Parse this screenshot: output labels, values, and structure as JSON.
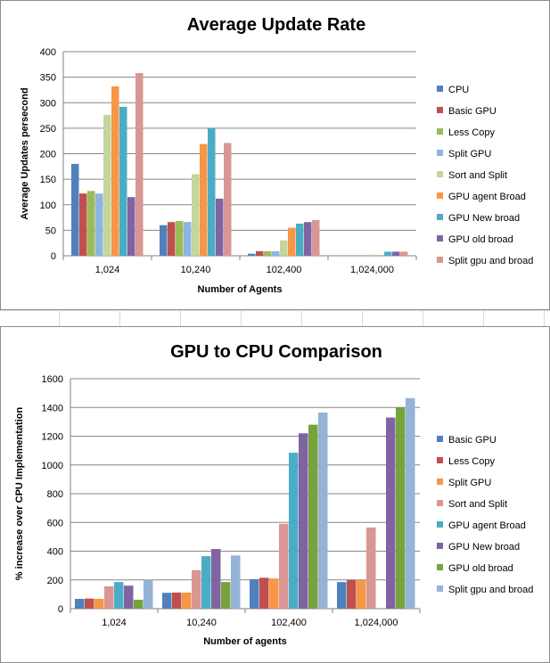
{
  "chart_data": [
    {
      "type": "bar",
      "title": "Average Update Rate",
      "xlabel": "Number of Agents",
      "ylabel": "Average Updates persecond",
      "ylim": [
        0,
        400
      ],
      "yticks": [
        "0",
        "50",
        "100",
        "150",
        "200",
        "250",
        "300",
        "350",
        "400"
      ],
      "categories": [
        "1,024",
        "10,240",
        "102,400",
        "1,024,000"
      ],
      "grid": true,
      "legend": "right",
      "series": [
        {
          "name": "CPU",
          "color": "#4F81BD",
          "values": [
            180,
            60,
            4,
            0
          ]
        },
        {
          "name": "Basic GPU",
          "color": "#C0504D",
          "values": [
            122,
            66,
            9,
            0
          ]
        },
        {
          "name": "Less Copy",
          "color": "#9BBB59",
          "values": [
            127,
            68,
            9,
            0
          ]
        },
        {
          "name": "Split GPU",
          "color": "#8EB4E3",
          "values": [
            122,
            66,
            9,
            0
          ]
        },
        {
          "name": "Sort and Split",
          "color": "#C3D69B",
          "values": [
            276,
            160,
            30,
            2
          ]
        },
        {
          "name": "GPU agent Broad",
          "color": "#F79646",
          "values": [
            332,
            219,
            55,
            0
          ]
        },
        {
          "name": "GPU New broad",
          "color": "#4BACC6",
          "values": [
            292,
            250,
            63,
            8
          ]
        },
        {
          "name": "GPU old broad",
          "color": "#8064A2",
          "values": [
            115,
            112,
            66,
            8
          ]
        },
        {
          "name": "Split gpu and broad",
          "color": "#D99694",
          "values": [
            358,
            221,
            70,
            8
          ]
        }
      ]
    },
    {
      "type": "bar",
      "title": "GPU to CPU Comparison",
      "xlabel": "Number of agents",
      "ylabel": "% increase over CPU Implementation",
      "ylim": [
        0,
        1600
      ],
      "yticks": [
        "0",
        "200",
        "400",
        "600",
        "800",
        "1000",
        "1200",
        "1400",
        "1600"
      ],
      "categories": [
        "1,024",
        "10,240",
        "102,400",
        "1,024,000"
      ],
      "grid": true,
      "legend": "right",
      "series": [
        {
          "name": "Basic GPU",
          "color": "#4F81BD",
          "values": [
            68,
            110,
            205,
            185
          ]
        },
        {
          "name": "Less Copy",
          "color": "#C0504D",
          "values": [
            70,
            112,
            215,
            200
          ]
        },
        {
          "name": "Split GPU",
          "color": "#F79646",
          "values": [
            68,
            112,
            210,
            200
          ]
        },
        {
          "name": "Sort and Split",
          "color": "#DA9694",
          "values": [
            155,
            268,
            590,
            565
          ]
        },
        {
          "name": "GPU agent Broad",
          "color": "#4BACC6",
          "values": [
            185,
            365,
            1085,
            0
          ]
        },
        {
          "name": "GPU New broad",
          "color": "#8064A2",
          "values": [
            160,
            415,
            1220,
            1330
          ]
        },
        {
          "name": "GPU old broad",
          "color": "#77A33C",
          "values": [
            62,
            185,
            1280,
            1400
          ]
        },
        {
          "name": "Split gpu and broad",
          "color": "#95B3D7",
          "values": [
            200,
            370,
            1365,
            1465
          ]
        }
      ]
    }
  ]
}
